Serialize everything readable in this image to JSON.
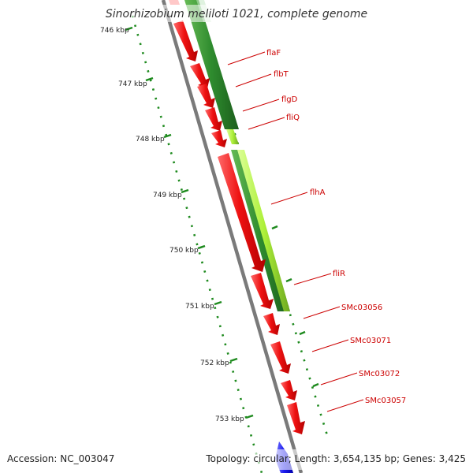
{
  "title": "Sinorhizobium meliloti 1021, complete genome",
  "footer": {
    "accession": "Accession: NC_003047",
    "summary": "Topology: circular; Length: 3,654,135 bp; Genes: 3,425"
  },
  "ticks": [
    "746 kbp",
    "747 kbp",
    "748 kbp",
    "749 kbp",
    "750 kbp",
    "751 kbp",
    "752 kbp",
    "753 kbp"
  ],
  "genes": [
    "flaF",
    "flbT",
    "flgD",
    "fliQ",
    "flhA",
    "fliR",
    "SMc03056",
    "SMc03071",
    "SMc03072",
    "SMc03057"
  ],
  "colors": {
    "gene": "#ee1111",
    "gene_dark": "#b30000",
    "backbone": "#7a7a7a",
    "operon_green": "#2e8b2e",
    "operon_lime": "#aef03a",
    "ticks": "#1e8a1e",
    "labels": "#cc0000",
    "partial_gene": "#1a1aee"
  }
}
